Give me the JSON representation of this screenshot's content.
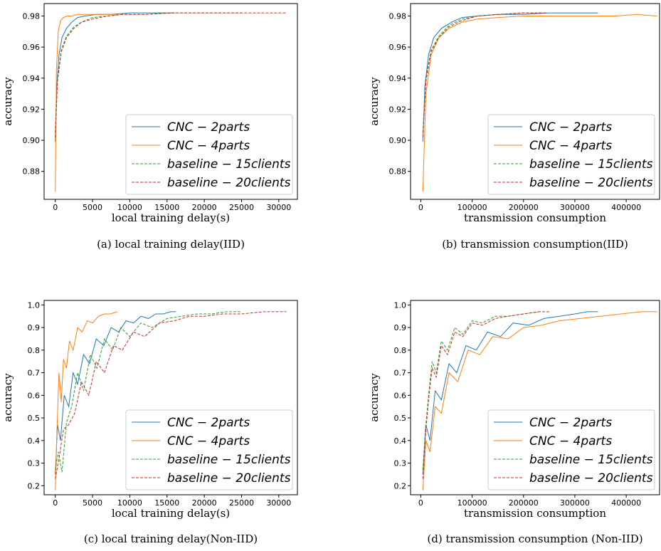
{
  "colors": {
    "cnc_2parts": "#1f77b4",
    "cnc_4parts": "#ff7f0e",
    "baseline_15clients": "#2ca02c",
    "baseline_20clients": "#d62728"
  },
  "legend": {
    "placement": "lower-right",
    "entries": [
      "CNC − 2parts",
      "CNC − 4parts",
      "baseline − 15clients",
      "baseline − 20clients"
    ]
  },
  "chart_data": [
    {
      "type": "line",
      "caption": "(a)  local training delay(IID)",
      "xlabel": "local training delay(s)",
      "ylabel": "accuracy",
      "xlim": [
        -1500,
        32500
      ],
      "ylim": [
        0.862,
        0.988
      ],
      "xticks": [
        0,
        5000,
        10000,
        15000,
        20000,
        25000,
        30000
      ],
      "xtick_labels": [
        "0",
        "5000",
        "10000",
        "15000",
        "20000",
        "25000",
        "30000"
      ],
      "yticks": [
        0.88,
        0.9,
        0.92,
        0.94,
        0.96,
        0.98
      ],
      "ytick_labels": [
        "0.88",
        "0.90",
        "0.92",
        "0.94",
        "0.96",
        "0.98"
      ],
      "grid": false,
      "series": [
        {
          "name": "CNC − 2parts",
          "style": "solid",
          "x": [
            0,
            200,
            500,
            900,
            1500,
            2200,
            3000,
            4000,
            5500,
            7500,
            10000,
            13000,
            16000
          ],
          "y": [
            0.899,
            0.935,
            0.955,
            0.966,
            0.972,
            0.976,
            0.979,
            0.98,
            0.981,
            0.981,
            0.982,
            0.982,
            0.982
          ]
        },
        {
          "name": "CNC − 4parts",
          "style": "solid",
          "x": [
            0,
            150,
            400,
            700,
            1100,
            1600,
            2200,
            3000,
            4000,
            5000,
            6500,
            8300
          ],
          "y": [
            0.867,
            0.945,
            0.97,
            0.977,
            0.979,
            0.98,
            0.98,
            0.981,
            0.981,
            0.981,
            0.981,
            0.981
          ]
        },
        {
          "name": "baseline − 15clients",
          "style": "dashed",
          "x": [
            0,
            300,
            800,
            1500,
            2500,
            3500,
            5000,
            7000,
            9000,
            12000,
            15000,
            20000,
            25000
          ],
          "y": [
            0.905,
            0.94,
            0.958,
            0.967,
            0.973,
            0.976,
            0.979,
            0.98,
            0.981,
            0.981,
            0.982,
            0.982,
            0.982
          ]
        },
        {
          "name": "baseline − 20clients",
          "style": "dashed",
          "x": [
            0,
            300,
            800,
            1500,
            2500,
            3500,
            5000,
            7000,
            9000,
            12000,
            16000,
            20000,
            25000,
            31000
          ],
          "y": [
            0.902,
            0.938,
            0.957,
            0.966,
            0.972,
            0.976,
            0.978,
            0.98,
            0.981,
            0.981,
            0.982,
            0.982,
            0.982,
            0.982
          ]
        }
      ]
    },
    {
      "type": "line",
      "caption": "(b)  transmission consumption(IID)",
      "xlabel": "transmission consumption",
      "ylabel": "accuracy",
      "xlim": [
        -20000,
        465000
      ],
      "ylim": [
        0.862,
        0.988
      ],
      "xticks": [
        0,
        100000,
        200000,
        300000,
        400000
      ],
      "xtick_labels": [
        "0",
        "100000",
        "200000",
        "300000",
        "400000"
      ],
      "yticks": [
        0.88,
        0.9,
        0.92,
        0.94,
        0.96,
        0.98
      ],
      "ytick_labels": [
        "0.88",
        "0.90",
        "0.92",
        "0.94",
        "0.96",
        "0.98"
      ],
      "grid": false,
      "series": [
        {
          "name": "CNC − 2parts",
          "style": "solid",
          "x": [
            4000,
            8000,
            15000,
            25000,
            40000,
            60000,
            80000,
            110000,
            150000,
            200000,
            250000,
            300000,
            345000
          ],
          "y": [
            0.899,
            0.935,
            0.955,
            0.966,
            0.972,
            0.976,
            0.979,
            0.98,
            0.981,
            0.981,
            0.982,
            0.982,
            0.982
          ]
        },
        {
          "name": "CNC − 4parts",
          "style": "solid",
          "x": [
            4000,
            10000,
            20000,
            35000,
            55000,
            80000,
            110000,
            150000,
            200000,
            260000,
            320000,
            380000,
            420000,
            460000
          ],
          "y": [
            0.867,
            0.93,
            0.955,
            0.966,
            0.972,
            0.976,
            0.978,
            0.979,
            0.98,
            0.98,
            0.98,
            0.98,
            0.981,
            0.98
          ]
        },
        {
          "name": "baseline − 15clients",
          "style": "dashed",
          "x": [
            4000,
            10000,
            20000,
            35000,
            55000,
            80000,
            110000,
            150000,
            200000,
            240000
          ],
          "y": [
            0.905,
            0.94,
            0.958,
            0.967,
            0.974,
            0.978,
            0.98,
            0.981,
            0.982,
            0.982
          ]
        },
        {
          "name": "baseline − 20clients",
          "style": "dashed",
          "x": [
            4000,
            10000,
            20000,
            35000,
            55000,
            80000,
            110000,
            150000,
            200000,
            245000
          ],
          "y": [
            0.902,
            0.938,
            0.957,
            0.966,
            0.973,
            0.977,
            0.98,
            0.981,
            0.982,
            0.982
          ]
        }
      ]
    },
    {
      "type": "line",
      "caption": "(c)  local training delay(Non-IID)",
      "xlabel": "local training delay(s)",
      "ylabel": "accuracy",
      "xlim": [
        -1500,
        32500
      ],
      "ylim": [
        0.16,
        1.02
      ],
      "xticks": [
        0,
        5000,
        10000,
        15000,
        20000,
        25000,
        30000
      ],
      "xtick_labels": [
        "0",
        "5000",
        "10000",
        "15000",
        "20000",
        "25000",
        "30000"
      ],
      "yticks": [
        0.2,
        0.3,
        0.4,
        0.5,
        0.6,
        0.7,
        0.8,
        0.9,
        1.0
      ],
      "ytick_labels": [
        "0.2",
        "0.3",
        "0.4",
        "0.5",
        "0.6",
        "0.7",
        "0.8",
        "0.9",
        "1.0"
      ],
      "grid": false,
      "series": [
        {
          "name": "CNC − 2parts",
          "style": "solid",
          "x": [
            0,
            300,
            700,
            1200,
            1800,
            2400,
            3000,
            3800,
            4600,
            5500,
            6500,
            7500,
            8500,
            9500,
            10500,
            11500,
            12500,
            13500,
            14500,
            15500,
            16200
          ],
          "y": [
            0.25,
            0.47,
            0.4,
            0.6,
            0.55,
            0.7,
            0.65,
            0.78,
            0.74,
            0.85,
            0.82,
            0.9,
            0.88,
            0.93,
            0.92,
            0.95,
            0.94,
            0.96,
            0.96,
            0.97,
            0.97
          ]
        },
        {
          "name": "CNC − 4parts",
          "style": "solid",
          "x": [
            0,
            200,
            500,
            800,
            1100,
            1500,
            1900,
            2400,
            3000,
            3600,
            4300,
            5000,
            5800,
            6600,
            7400,
            8300
          ],
          "y": [
            0.18,
            0.42,
            0.7,
            0.57,
            0.76,
            0.72,
            0.84,
            0.8,
            0.9,
            0.88,
            0.93,
            0.92,
            0.95,
            0.96,
            0.96,
            0.97
          ]
        },
        {
          "name": "baseline − 15clients",
          "style": "dashed",
          "x": [
            0,
            400,
            900,
            1500,
            2200,
            3000,
            3800,
            4700,
            5600,
            6600,
            7700,
            8800,
            10000,
            11500,
            13000,
            15000,
            17000,
            19000,
            21000,
            23000,
            25000
          ],
          "y": [
            0.27,
            0.35,
            0.26,
            0.48,
            0.55,
            0.7,
            0.62,
            0.78,
            0.72,
            0.85,
            0.8,
            0.9,
            0.86,
            0.92,
            0.9,
            0.94,
            0.95,
            0.96,
            0.96,
            0.97,
            0.97
          ]
        },
        {
          "name": "baseline − 20clients",
          "style": "dashed",
          "x": [
            0,
            500,
            1100,
            1800,
            2600,
            3500,
            4500,
            5500,
            6600,
            7800,
            9000,
            10500,
            12000,
            14000,
            16000,
            18000,
            20000,
            22500,
            25000,
            28000,
            31000
          ],
          "y": [
            0.23,
            0.32,
            0.45,
            0.47,
            0.52,
            0.66,
            0.6,
            0.75,
            0.7,
            0.82,
            0.8,
            0.88,
            0.86,
            0.92,
            0.93,
            0.95,
            0.95,
            0.96,
            0.96,
            0.97,
            0.97
          ]
        }
      ]
    },
    {
      "type": "line",
      "caption": "(d)  transmission consumption (Non-IID)",
      "xlabel": "transmission consumption",
      "ylabel": "accuracy",
      "xlim": [
        -20000,
        465000
      ],
      "ylim": [
        0.16,
        1.02
      ],
      "xticks": [
        0,
        100000,
        200000,
        300000,
        400000
      ],
      "xtick_labels": [
        "0",
        "100000",
        "200000",
        "300000",
        "400000"
      ],
      "yticks": [
        0.2,
        0.3,
        0.4,
        0.5,
        0.6,
        0.7,
        0.8,
        0.9,
        1.0
      ],
      "ytick_labels": [
        "0.2",
        "0.3",
        "0.4",
        "0.5",
        "0.6",
        "0.7",
        "0.8",
        "0.9",
        "1.0"
      ],
      "grid": false,
      "series": [
        {
          "name": "CNC − 2parts",
          "style": "solid",
          "x": [
            4000,
            10000,
            18000,
            28000,
            40000,
            55000,
            70000,
            88000,
            108000,
            130000,
            155000,
            180000,
            210000,
            240000,
            270000,
            300000,
            325000,
            345000
          ],
          "y": [
            0.25,
            0.47,
            0.4,
            0.62,
            0.58,
            0.74,
            0.7,
            0.82,
            0.8,
            0.88,
            0.86,
            0.92,
            0.91,
            0.94,
            0.95,
            0.96,
            0.97,
            0.97
          ]
        },
        {
          "name": "CNC − 4parts",
          "style": "solid",
          "x": [
            4000,
            10000,
            18000,
            28000,
            40000,
            55000,
            72000,
            92000,
            115000,
            140000,
            170000,
            200000,
            235000,
            270000,
            310000,
            350000,
            390000,
            430000,
            460000
          ],
          "y": [
            0.18,
            0.4,
            0.35,
            0.55,
            0.52,
            0.7,
            0.66,
            0.8,
            0.78,
            0.86,
            0.85,
            0.9,
            0.91,
            0.93,
            0.94,
            0.95,
            0.96,
            0.97,
            0.97
          ]
        },
        {
          "name": "baseline − 15clients",
          "style": "dashed",
          "x": [
            4000,
            9000,
            15000,
            22000,
            30000,
            40000,
            52000,
            66000,
            82000,
            100000,
            120000,
            145000,
            170000,
            200000,
            230000
          ],
          "y": [
            0.27,
            0.45,
            0.6,
            0.75,
            0.7,
            0.84,
            0.8,
            0.9,
            0.87,
            0.93,
            0.92,
            0.95,
            0.95,
            0.96,
            0.97
          ]
        },
        {
          "name": "baseline − 20clients",
          "style": "dashed",
          "x": [
            4000,
            9000,
            15000,
            22000,
            30000,
            40000,
            52000,
            66000,
            82000,
            100000,
            120000,
            145000,
            170000,
            200000,
            230000,
            250000
          ],
          "y": [
            0.23,
            0.42,
            0.58,
            0.72,
            0.68,
            0.82,
            0.78,
            0.88,
            0.86,
            0.92,
            0.91,
            0.94,
            0.95,
            0.96,
            0.97,
            0.97
          ]
        }
      ]
    }
  ]
}
